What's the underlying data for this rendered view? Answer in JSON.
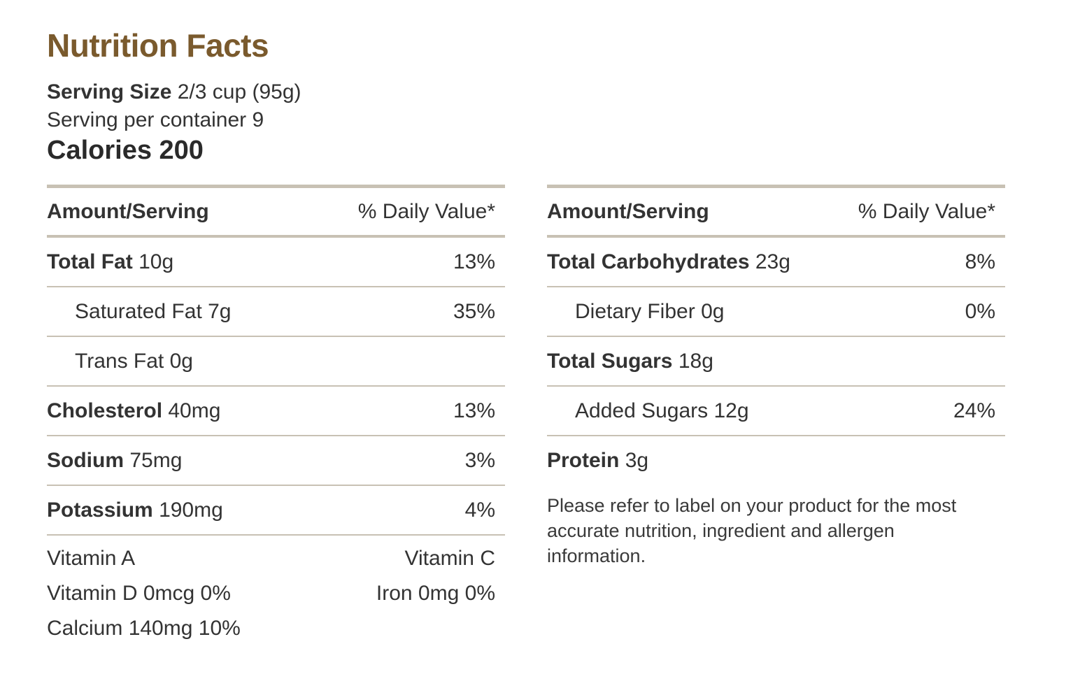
{
  "title": "Nutrition Facts",
  "serving": {
    "size_label": "Serving Size",
    "size_value": "2/3 cup (95g)",
    "per_container": "Serving per container 9"
  },
  "calories": "Calories 200",
  "header": {
    "amount": "Amount/Serving",
    "daily": "% Daily Value*"
  },
  "left": {
    "rows": [
      {
        "name": "Total Fat",
        "amount": "10g",
        "dv": "13%"
      },
      {
        "name": "Saturated Fat",
        "amount": "7g",
        "dv": "35%"
      },
      {
        "name": "Trans Fat",
        "amount": "0g",
        "dv": ""
      },
      {
        "name": "Cholesterol",
        "amount": "40mg",
        "dv": "13%"
      },
      {
        "name": "Sodium",
        "amount": "75mg",
        "dv": "3%"
      },
      {
        "name": "Potassium",
        "amount": "190mg",
        "dv": "4%"
      }
    ],
    "vitamins": [
      {
        "left": "Vitamin A",
        "right": "Vitamin C"
      },
      {
        "left": "Vitamin D 0mcg 0%",
        "right": "Iron 0mg 0%"
      },
      {
        "left": "Calcium 140mg 10%",
        "right": ""
      }
    ]
  },
  "right": {
    "rows": [
      {
        "name": "Total Carbohydrates",
        "amount": "23g",
        "dv": "8%"
      },
      {
        "name": "Dietary Fiber",
        "amount": "0g",
        "dv": "0%"
      },
      {
        "name": "Total Sugars",
        "amount": "18g",
        "dv": ""
      },
      {
        "name": "Added Sugars",
        "amount": "12g",
        "dv": "24%"
      },
      {
        "name": "Protein",
        "amount": "3g",
        "dv": ""
      }
    ],
    "note": "Please refer to label on your product for the most accurate nutrition, ingredient and allergen information."
  },
  "colors": {
    "title": "#7a5a2d",
    "rule": "#c8c1b4",
    "text": "#333333"
  }
}
